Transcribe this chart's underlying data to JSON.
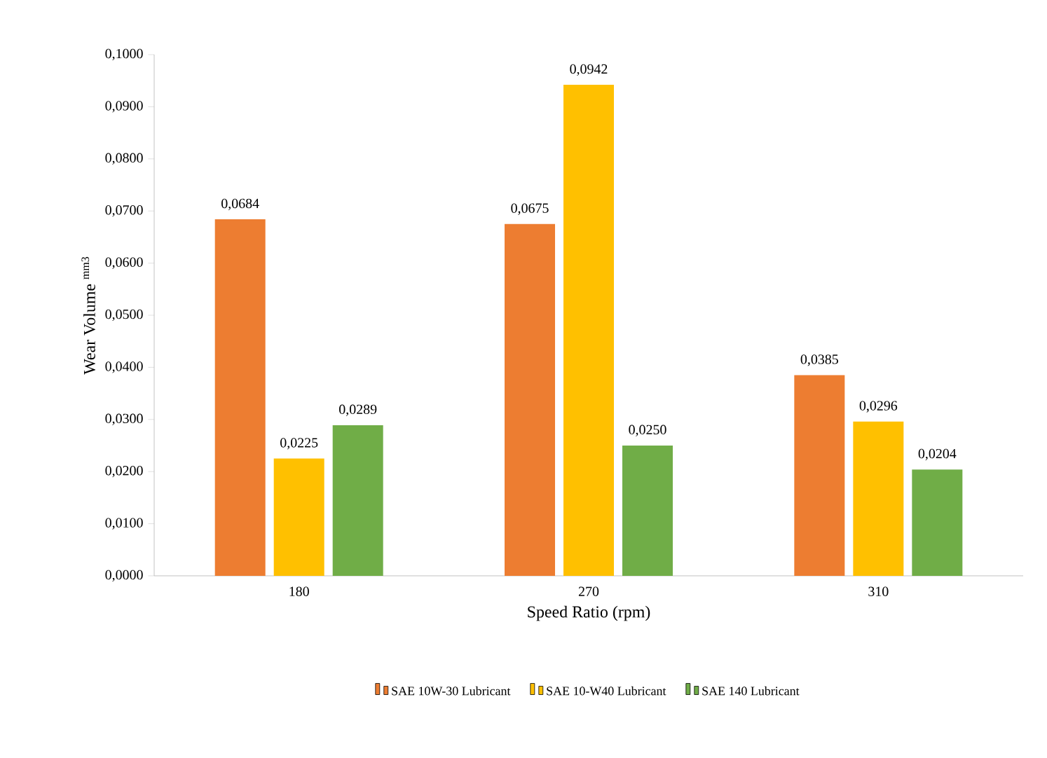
{
  "chart_data": {
    "type": "bar",
    "xlabel": "Speed Ratio  (rpm)",
    "ylabel": "Wear Volume $^{mm3}$",
    "categories": [
      "180",
      "270",
      "310"
    ],
    "series": [
      {
        "name": "SAE 10W-30 Lubricant",
        "color": "#ed7d31",
        "values": [
          0.0684,
          0.0675,
          0.0385
        ],
        "value_labels": [
          "0,0684",
          "0,0675",
          "0,0385"
        ]
      },
      {
        "name": "SAE 10-W40 Lubricant",
        "color": "#ffc000",
        "values": [
          0.0225,
          0.0942,
          0.0296
        ],
        "value_labels": [
          "0,0225",
          "0,0942",
          "0,0296"
        ]
      },
      {
        "name": "SAE 140 Lubricant",
        "color": "#70ad47",
        "values": [
          0.0289,
          0.025,
          0.0204
        ],
        "value_labels": [
          "0,0289",
          "0,0250",
          "0,0204"
        ]
      }
    ],
    "ylim": [
      0,
      0.1
    ],
    "yticks": [
      {
        "value": 0,
        "label": "0,0000"
      },
      {
        "value": 0.01,
        "label": "0,0100"
      },
      {
        "value": 0.02,
        "label": "0,0200"
      },
      {
        "value": 0.03,
        "label": "0,0300"
      },
      {
        "value": 0.04,
        "label": "0,0400"
      },
      {
        "value": 0.05,
        "label": "0,0500"
      },
      {
        "value": 0.06,
        "label": "0,0600"
      },
      {
        "value": 0.07,
        "label": "0,0700"
      },
      {
        "value": 0.08,
        "label": "0,0800"
      },
      {
        "value": 0.09,
        "label": "0,0900"
      },
      {
        "value": 0.1,
        "label": "0,1000"
      }
    ],
    "legend": "bottom",
    "grid": false
  }
}
